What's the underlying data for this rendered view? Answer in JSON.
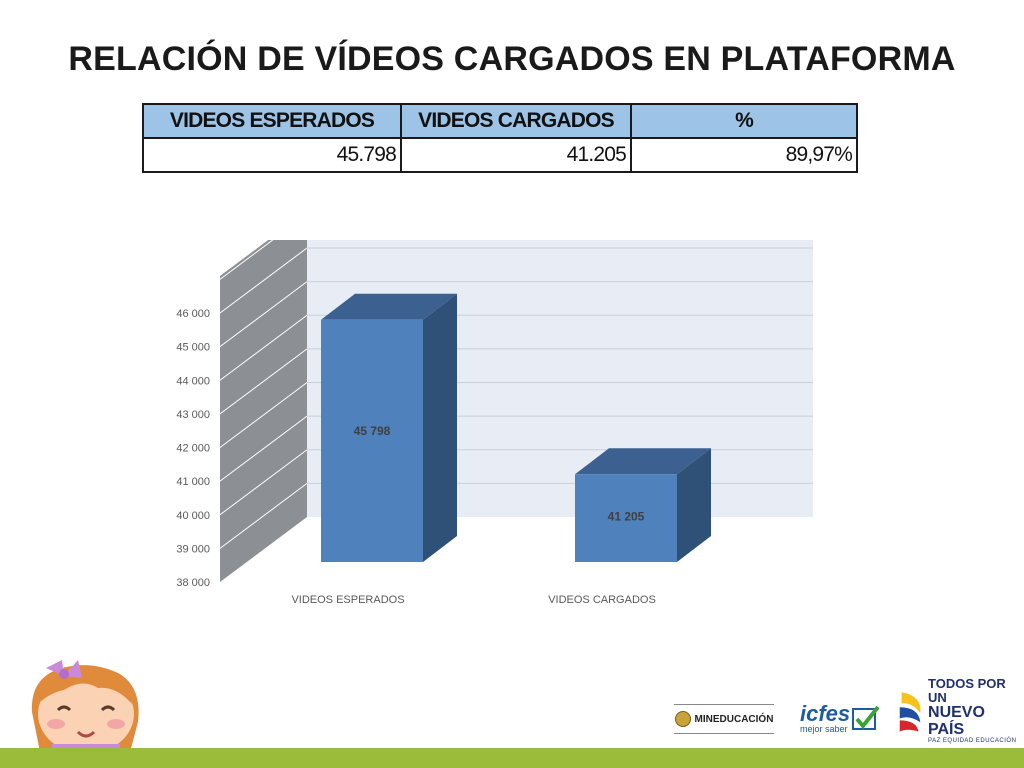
{
  "slide": {
    "title": "RELACIÓN DE VÍDEOS CARGADOS EN PLATAFORMA"
  },
  "table": {
    "headers": [
      "VIDEOS ESPERADOS",
      "VIDEOS CARGADOS",
      "%"
    ],
    "row": [
      "45.798",
      "41.205",
      "89,97%"
    ]
  },
  "chart_data": {
    "type": "bar",
    "style": "3d-column",
    "categories": [
      "VIDEOS ESPERADOS",
      "VIDEOS CARGADOS"
    ],
    "values": [
      45798,
      41205
    ],
    "data_labels": [
      "45 798",
      "41 205"
    ],
    "y_ticks": [
      "38 000",
      "39 000",
      "40 000",
      "41 000",
      "42 000",
      "43 000",
      "44 000",
      "45 000",
      "46 000"
    ],
    "ylim": [
      38000,
      46000
    ],
    "grid": true,
    "legend": "none",
    "colors": {
      "bar_front": "#4f81bd",
      "bar_side": "#2f5077",
      "bar_top": "#3c6090",
      "back_wall": "#e8edf5",
      "side_wall": "#8c8f94"
    }
  },
  "footer": {
    "logos": [
      {
        "text": "MINEDUCACIÓN",
        "icon": "colombia-seal-icon"
      },
      {
        "text": "icfes",
        "subtext": "mejor saber",
        "icon": "checkmark-icon"
      },
      {
        "text": "TODOS POR UN",
        "text2": "NUEVO PAÍS",
        "text3": "PAZ  EQUIDAD  EDUCACIÓN",
        "icon": "colombia-flag-swoosh-icon"
      }
    ],
    "mascot": "girl-mascot-icon",
    "bar_color": "#9bbb3b"
  }
}
